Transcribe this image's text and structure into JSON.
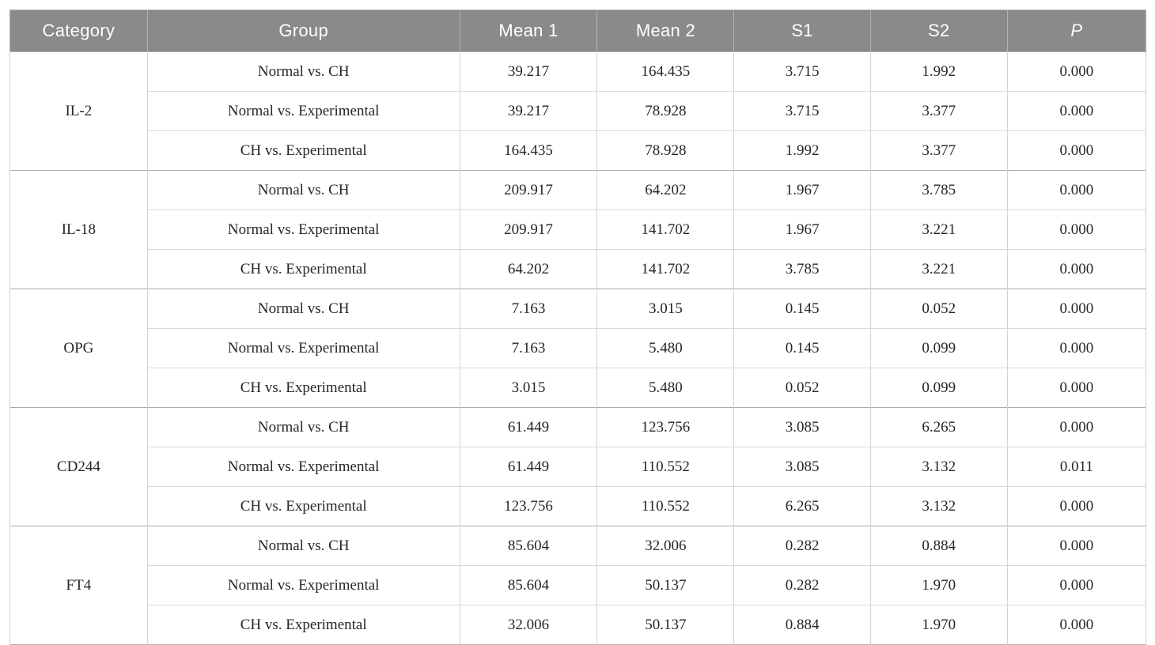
{
  "table": {
    "columns": [
      {
        "key": "category",
        "label": "Category"
      },
      {
        "key": "group",
        "label": "Group"
      },
      {
        "key": "mean1",
        "label": "Mean 1"
      },
      {
        "key": "mean2",
        "label": "Mean 2"
      },
      {
        "key": "s1",
        "label": "S1"
      },
      {
        "key": "s2",
        "label": "S2"
      },
      {
        "key": "p",
        "label": "P"
      }
    ],
    "groups": [
      {
        "category": "IL-2",
        "rows": [
          {
            "group": "Normal vs. CH",
            "mean1": "39.217",
            "mean2": "164.435",
            "s1": "3.715",
            "s2": "1.992",
            "p": "0.000"
          },
          {
            "group": "Normal vs. Experimental",
            "mean1": "39.217",
            "mean2": "78.928",
            "s1": "3.715",
            "s2": "3.377",
            "p": "0.000"
          },
          {
            "group": "CH vs. Experimental",
            "mean1": "164.435",
            "mean2": "78.928",
            "s1": "1.992",
            "s2": "3.377",
            "p": "0.000"
          }
        ]
      },
      {
        "category": "IL-18",
        "rows": [
          {
            "group": "Normal vs. CH",
            "mean1": "209.917",
            "mean2": "64.202",
            "s1": "1.967",
            "s2": "3.785",
            "p": "0.000"
          },
          {
            "group": "Normal vs. Experimental",
            "mean1": "209.917",
            "mean2": "141.702",
            "s1": "1.967",
            "s2": "3.221",
            "p": "0.000"
          },
          {
            "group": "CH vs. Experimental",
            "mean1": "64.202",
            "mean2": "141.702",
            "s1": "3.785",
            "s2": "3.221",
            "p": "0.000"
          }
        ]
      },
      {
        "category": "OPG",
        "rows": [
          {
            "group": "Normal vs. CH",
            "mean1": "7.163",
            "mean2": "3.015",
            "s1": "0.145",
            "s2": "0.052",
            "p": "0.000"
          },
          {
            "group": "Normal vs. Experimental",
            "mean1": "7.163",
            "mean2": "5.480",
            "s1": "0.145",
            "s2": "0.099",
            "p": "0.000"
          },
          {
            "group": "CH vs. Experimental",
            "mean1": "3.015",
            "mean2": "5.480",
            "s1": "0.052",
            "s2": "0.099",
            "p": "0.000"
          }
        ]
      },
      {
        "category": "CD244",
        "rows": [
          {
            "group": "Normal vs. CH",
            "mean1": "61.449",
            "mean2": "123.756",
            "s1": "3.085",
            "s2": "6.265",
            "p": "0.000"
          },
          {
            "group": "Normal vs. Experimental",
            "mean1": "61.449",
            "mean2": "110.552",
            "s1": "3.085",
            "s2": "3.132",
            "p": "0.011"
          },
          {
            "group": "CH vs. Experimental",
            "mean1": "123.756",
            "mean2": "110.552",
            "s1": "6.265",
            "s2": "3.132",
            "p": "0.000"
          }
        ]
      },
      {
        "category": "FT4",
        "rows": [
          {
            "group": "Normal vs. CH",
            "mean1": "85.604",
            "mean2": "32.006",
            "s1": "0.282",
            "s2": "0.884",
            "p": "0.000"
          },
          {
            "group": "Normal vs. Experimental",
            "mean1": "85.604",
            "mean2": "50.137",
            "s1": "0.282",
            "s2": "1.970",
            "p": "0.000"
          },
          {
            "group": "CH vs. Experimental",
            "mean1": "32.006",
            "mean2": "50.137",
            "s1": "0.884",
            "s2": "1.970",
            "p": "0.000"
          }
        ]
      }
    ],
    "colors": {
      "header_bg": "#8a8a8a",
      "header_text": "#ffffff",
      "header_separator": "#b3b3b3",
      "body_text": "#262626",
      "row_border": "#d9d9d9",
      "group_border": "#aaaaaa",
      "outer_border": "#b5b5b5",
      "column_border": "#d4d4d4"
    }
  }
}
